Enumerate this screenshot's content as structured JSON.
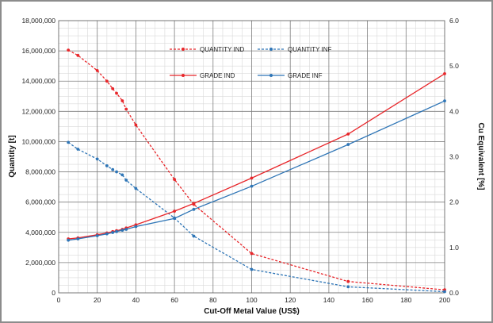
{
  "chart_data": {
    "type": "line",
    "xlabel": "Cut-Off Metal Value (US$)",
    "ylabel": "Quantity [t]",
    "y2label": "Cu Equivalent [%]",
    "xlim": [
      0,
      200
    ],
    "ylim": [
      0,
      18000000
    ],
    "y2lim": [
      0,
      6.0
    ],
    "x_ticks": [
      "0",
      "20",
      "40",
      "60",
      "80",
      "100",
      "120",
      "140",
      "160",
      "180",
      "200"
    ],
    "y_ticks": [
      "0",
      "2,000,000",
      "4,000,000",
      "6,000,000",
      "8,000,000",
      "10,000,000",
      "12,000,000",
      "14,000,000",
      "16,000,000",
      "18,000,000"
    ],
    "y2_ticks": [
      "0.0",
      "1.0",
      "2.0",
      "3.0",
      "4.0",
      "5.0",
      "6.0"
    ],
    "grid": true,
    "legend_position": "top-center",
    "series": [
      {
        "name": "QUANTITY IND",
        "axis": "left",
        "color": "#e8262a",
        "dash": true,
        "x": [
          5,
          10,
          20,
          25,
          28,
          30,
          33,
          35,
          40,
          60,
          70,
          100,
          150,
          200
        ],
        "y": [
          16050000,
          15700000,
          14700000,
          14000000,
          13500000,
          13200000,
          12700000,
          12150000,
          11100000,
          7500000,
          5850000,
          2600000,
          750000,
          200000
        ]
      },
      {
        "name": "QUANTITY INF",
        "axis": "left",
        "color": "#2e75b6",
        "dash": true,
        "x": [
          5,
          10,
          20,
          25,
          28,
          30,
          33,
          35,
          40,
          60,
          70,
          100,
          150,
          200
        ],
        "y": [
          9950000,
          9500000,
          8850000,
          8400000,
          8150000,
          8000000,
          7800000,
          7450000,
          6900000,
          4950000,
          3750000,
          1550000,
          400000,
          80000
        ]
      },
      {
        "name": "GRADE IND",
        "axis": "right",
        "color": "#e8262a",
        "dash": false,
        "x": [
          5,
          10,
          20,
          25,
          28,
          30,
          33,
          35,
          40,
          60,
          70,
          100,
          150,
          200
        ],
        "y": [
          1.19,
          1.21,
          1.28,
          1.32,
          1.35,
          1.37,
          1.4,
          1.43,
          1.5,
          1.8,
          1.97,
          2.53,
          3.5,
          4.83
        ]
      },
      {
        "name": "GRADE INF",
        "axis": "right",
        "color": "#2e75b6",
        "dash": false,
        "x": [
          5,
          10,
          20,
          25,
          28,
          30,
          33,
          35,
          40,
          60,
          70,
          100,
          150,
          200
        ],
        "y": [
          1.16,
          1.19,
          1.26,
          1.3,
          1.33,
          1.35,
          1.38,
          1.4,
          1.46,
          1.64,
          1.84,
          2.35,
          3.27,
          4.23
        ]
      }
    ]
  }
}
